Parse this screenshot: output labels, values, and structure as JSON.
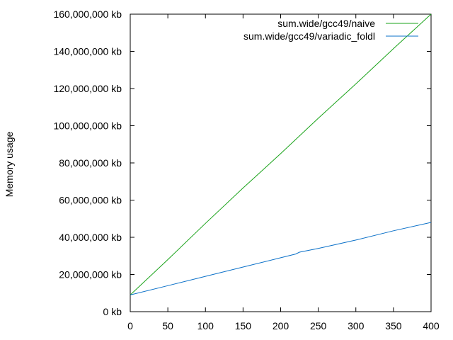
{
  "chart_data": {
    "type": "line",
    "title": "",
    "xlabel": "",
    "ylabel": "Memory usage",
    "xlim": [
      0,
      400
    ],
    "ylim": [
      0,
      160000000
    ],
    "grid": false,
    "legend_position": "top-right",
    "x_ticks": [
      "0",
      "50",
      "100",
      "150",
      "200",
      "250",
      "300",
      "350",
      "400"
    ],
    "y_ticks": [
      "0 kb",
      "20,000,000 kb",
      "40,000,000 kb",
      "60,000,000 kb",
      "80,000,000 kb",
      "100,000,000 kb",
      "120,000,000 kb",
      "140,000,000 kb",
      "160,000,000 kb"
    ],
    "x_tick_values": [
      0,
      50,
      100,
      150,
      200,
      250,
      300,
      350,
      400
    ],
    "y_tick_values": [
      0,
      20000000,
      40000000,
      60000000,
      80000000,
      100000000,
      120000000,
      140000000,
      160000000
    ],
    "series": [
      {
        "name": "sum.wide/gcc49/naive",
        "color": "#1aa31a",
        "x": [
          0,
          50,
          100,
          150,
          200,
          250,
          300,
          350,
          400
        ],
        "values": [
          9000000,
          28000000,
          47500000,
          66500000,
          85000000,
          104000000,
          122500000,
          141500000,
          160000000
        ]
      },
      {
        "name": "sum.wide/gcc49/variadic_foldl",
        "color": "#0a70c8",
        "x": [
          0,
          50,
          100,
          150,
          200,
          220,
          225,
          250,
          300,
          350,
          400
        ],
        "values": [
          9000000,
          14000000,
          19000000,
          24000000,
          29000000,
          31000000,
          32000000,
          34000000,
          38500000,
          43500000,
          48000000
        ]
      }
    ]
  }
}
